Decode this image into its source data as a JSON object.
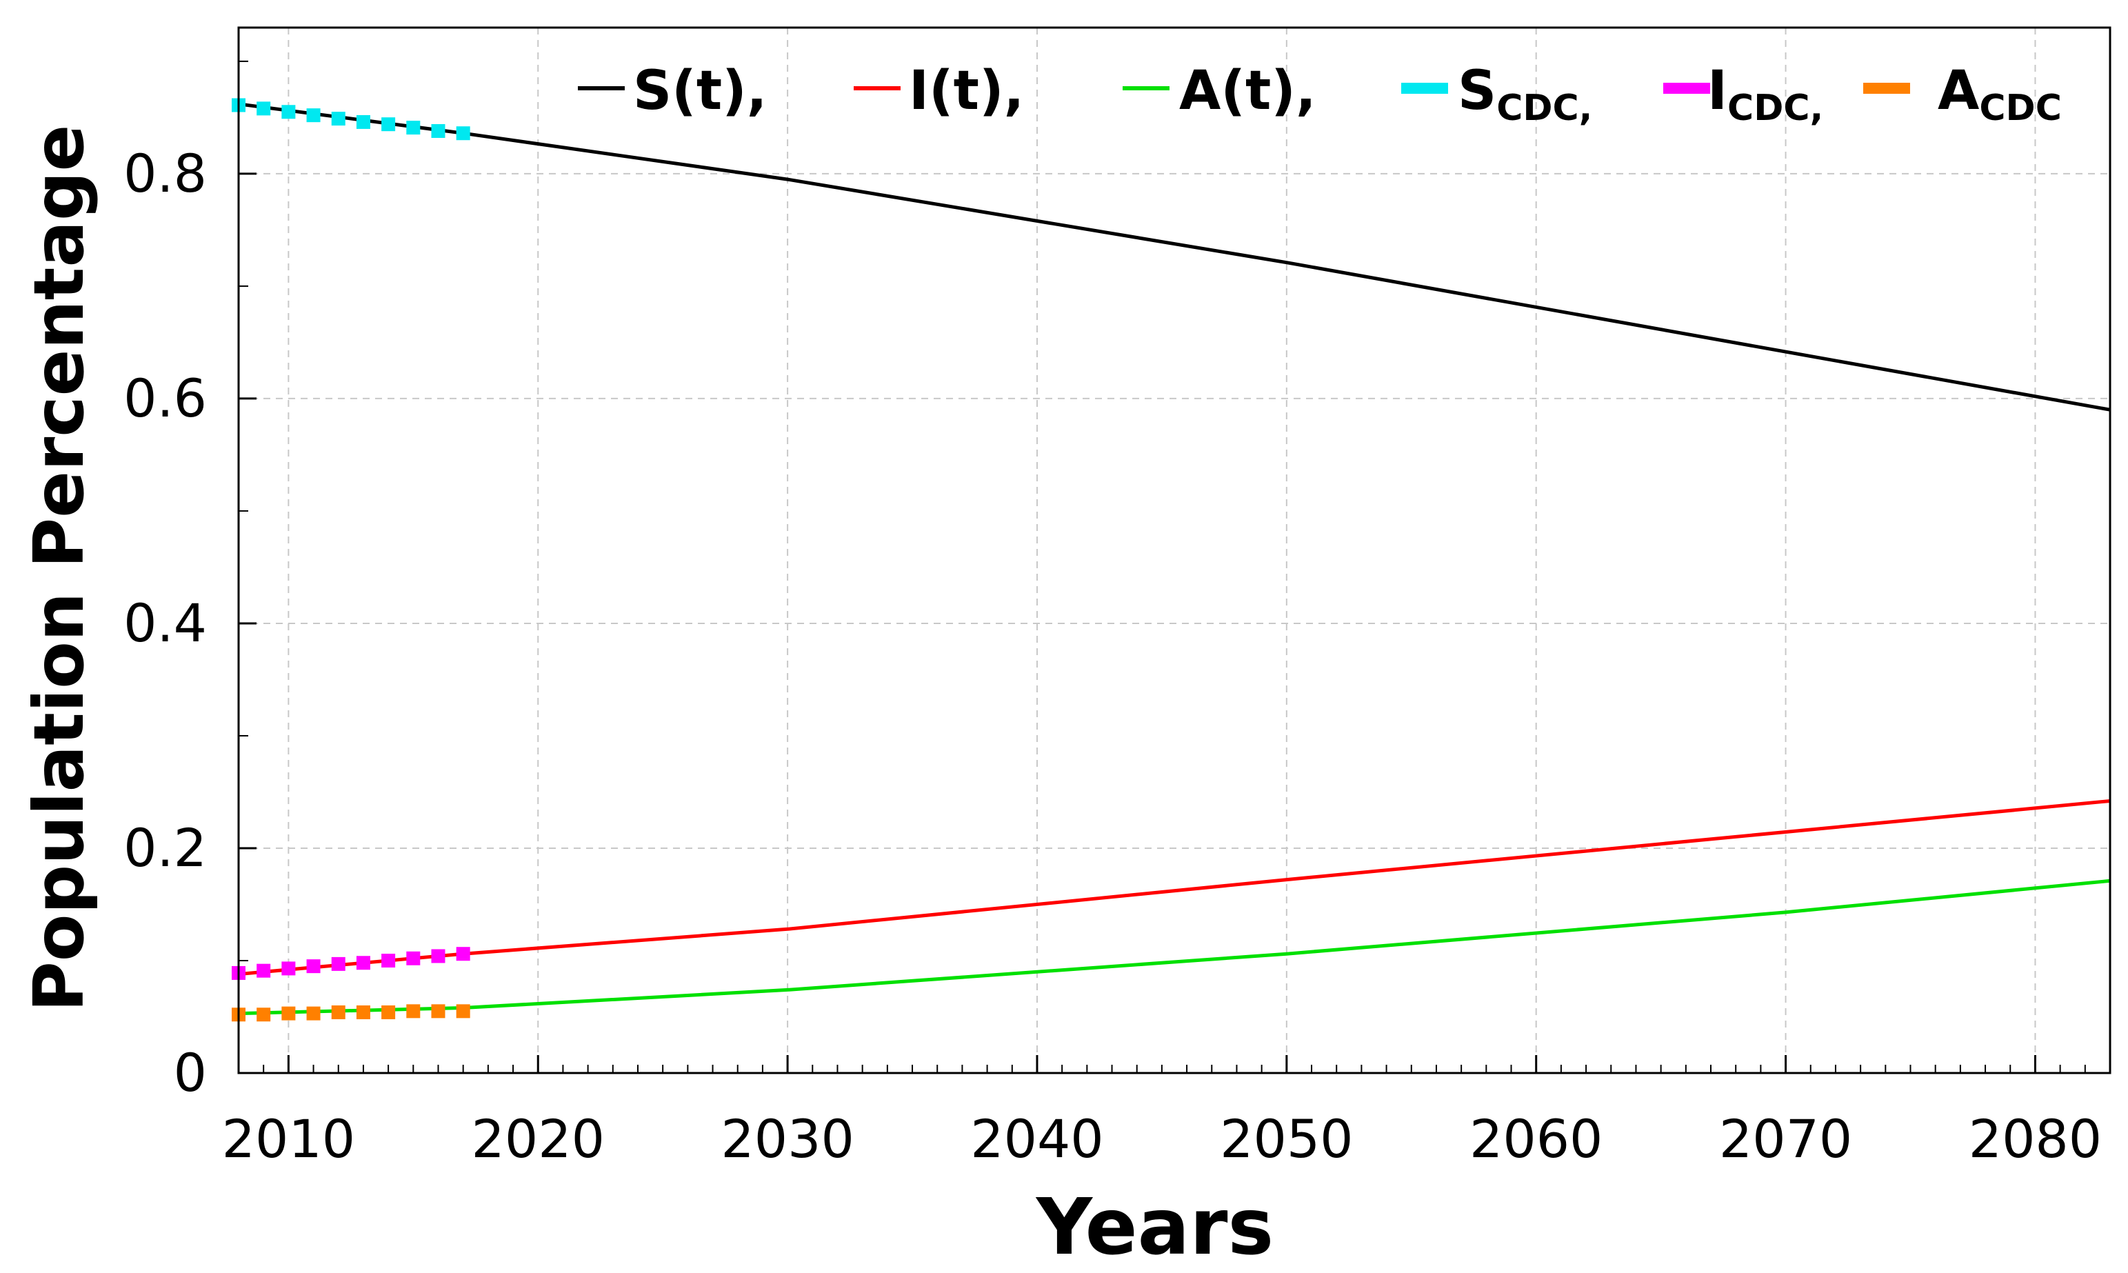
{
  "chart_data": {
    "type": "line",
    "title": "",
    "xlabel": "Years",
    "ylabel": "Population Percentage",
    "xlim": [
      2008,
      2083
    ],
    "ylim": [
      0,
      0.93
    ],
    "grid": true,
    "legend_position": "top",
    "x_ticks": [
      2010,
      2020,
      2030,
      2040,
      2050,
      2060,
      2070,
      2080
    ],
    "x_tick_labels": [
      "2010",
      "2020",
      "2030",
      "2040",
      "2050",
      "2060",
      "2070",
      "2080"
    ],
    "y_ticks": [
      0,
      0.2,
      0.4,
      0.6,
      0.8
    ],
    "y_tick_labels": [
      "0",
      "0.2",
      "0.4",
      "0.6",
      "0.8"
    ],
    "series": [
      {
        "name": "S(t),",
        "legend_main": "S(t),",
        "legend_sub": "",
        "color": "#000000",
        "style": "line",
        "x": [
          2008,
          2017,
          2030,
          2050,
          2083
        ],
        "y": [
          0.862,
          0.836,
          0.795,
          0.721,
          0.59
        ]
      },
      {
        "name": "I(t),",
        "legend_main": "I(t),",
        "legend_sub": "",
        "color": "#ff0000",
        "style": "line",
        "x": [
          2008,
          2017,
          2030,
          2050,
          2083
        ],
        "y": [
          0.088,
          0.106,
          0.128,
          0.172,
          0.242
        ]
      },
      {
        "name": "A(t),",
        "legend_main": "A(t),",
        "legend_sub": "",
        "color": "#00e000",
        "style": "line",
        "x": [
          2008,
          2017,
          2030,
          2050,
          2070,
          2083
        ],
        "y": [
          0.053,
          0.058,
          0.074,
          0.106,
          0.143,
          0.171
        ]
      },
      {
        "name": "S_CDC",
        "legend_main": "S",
        "legend_sub": "CDC,",
        "color": "#00e8f0",
        "style": "markers",
        "x": [
          2008,
          2009,
          2010,
          2011,
          2012,
          2013,
          2014,
          2015,
          2016,
          2017
        ],
        "y": [
          0.861,
          0.858,
          0.855,
          0.852,
          0.849,
          0.846,
          0.844,
          0.841,
          0.838,
          0.836
        ]
      },
      {
        "name": "I_CDC",
        "legend_main": "I",
        "legend_sub": "CDC,",
        "color": "#ff00ff",
        "style": "markers",
        "x": [
          2008,
          2009,
          2010,
          2011,
          2012,
          2013,
          2014,
          2015,
          2016,
          2017
        ],
        "y": [
          0.089,
          0.091,
          0.093,
          0.095,
          0.097,
          0.098,
          0.1,
          0.102,
          0.104,
          0.106
        ]
      },
      {
        "name": "A_CDC",
        "legend_main": "A",
        "legend_sub": "CDC",
        "color": "#ff8000",
        "style": "markers",
        "x": [
          2008,
          2009,
          2010,
          2011,
          2012,
          2013,
          2014,
          2015,
          2016,
          2017
        ],
        "y": [
          0.052,
          0.052,
          0.053,
          0.053,
          0.054,
          0.054,
          0.054,
          0.055,
          0.055,
          0.055
        ]
      }
    ]
  }
}
